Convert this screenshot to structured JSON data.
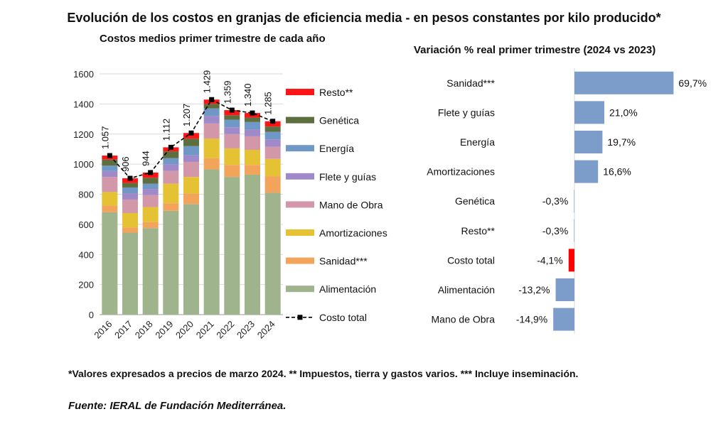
{
  "title": "Evolución de los costos en granjas de eficiencia media - en pesos constantes por kilo producido*",
  "note": "*Valores expresados a precios de marzo 2024.  ** Impuestos, tierra y gastos varios. *** Incluye inseminación.",
  "source": "Fuente: IERAL de Fundación Mediterránea.",
  "colors": {
    "Alimentación": "#9fb38c",
    "Sanidad***": "#f2a55a",
    "Amortizaciones": "#e5c234",
    "Mano de Obra": "#d397aa",
    "Flete y guías": "#9f89c9",
    "Energía": "#6f98c6",
    "Genética": "#5d6e3f",
    "Resto**": "#ff1515",
    "Costo total": "#000000",
    "bars_right": "#7c9dc9",
    "bar_negative_highlight": "#ff0000"
  },
  "chart_data": [
    {
      "type": "bar",
      "stacked": true,
      "title": "Costos medios primer trimestre de cada año",
      "categories": [
        "2016",
        "2017",
        "2018",
        "2019",
        "2020",
        "2021",
        "2022",
        "2023",
        "2024"
      ],
      "ylim": [
        0,
        1600
      ],
      "yticks": [
        0,
        200,
        400,
        600,
        800,
        1000,
        1200,
        1400,
        1600
      ],
      "grid": true,
      "legend_position": "right",
      "series": [
        {
          "name": "Alimentación",
          "values": [
            680,
            545,
            575,
            690,
            735,
            965,
            915,
            930,
            810
          ]
        },
        {
          "name": "Sanidad***",
          "values": [
            45,
            35,
            40,
            50,
            70,
            75,
            80,
            65,
            110
          ]
        },
        {
          "name": "Amortizaciones",
          "values": [
            90,
            95,
            100,
            130,
            110,
            130,
            110,
            100,
            115
          ]
        },
        {
          "name": "Mano de Obra",
          "values": [
            100,
            90,
            80,
            85,
            100,
            100,
            95,
            90,
            80
          ]
        },
        {
          "name": "Flete y guías",
          "values": [
            40,
            40,
            40,
            45,
            45,
            50,
            45,
            45,
            50
          ]
        },
        {
          "name": "Energía",
          "values": [
            35,
            40,
            35,
            40,
            60,
            50,
            50,
            50,
            50
          ]
        },
        {
          "name": "Genética",
          "values": [
            40,
            30,
            40,
            45,
            50,
            30,
            30,
            30,
            35
          ]
        },
        {
          "name": "Resto**",
          "values": [
            27,
            31,
            34,
            27,
            37,
            29,
            34,
            30,
            35
          ]
        }
      ],
      "line_series": {
        "name": "Costo total",
        "values": [
          1057,
          906,
          944,
          1112,
          1207,
          1429,
          1359,
          1340,
          1285
        ]
      },
      "data_labels": [
        "1.057",
        "906",
        "944",
        "1.112",
        "1.207",
        "1.429",
        "1.359",
        "1.340",
        "1.285"
      ]
    },
    {
      "type": "bar",
      "orientation": "horizontal",
      "title": "Variación % real primer trimestre (2024 vs 2023)",
      "categories": [
        "Sanidad***",
        "Flete y guías",
        "Energía",
        "Amortizaciones",
        "Genética",
        "Resto**",
        "Costo total",
        "Alimentación",
        "Mano de Obra"
      ],
      "values": [
        69.7,
        21.0,
        19.7,
        16.6,
        -0.3,
        -0.3,
        -4.1,
        -13.2,
        -14.9
      ],
      "data_labels": [
        "69,7%",
        "21,0%",
        "19,7%",
        "16,6%",
        "-0,3%",
        "-0,3%",
        "-4,1%",
        "-13,2%",
        "-14,9%"
      ],
      "highlight": "Costo total"
    }
  ]
}
